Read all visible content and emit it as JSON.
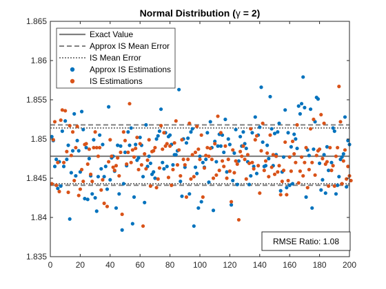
{
  "chart_data": {
    "type": "scatter",
    "title_prefix": "Normal Distribution (",
    "title_symbol": "γ",
    "title_suffix": " = 2)",
    "xlabel": "",
    "ylabel": "",
    "xlim": [
      0,
      200
    ],
    "ylim": [
      1.835,
      1.865
    ],
    "x_ticks": [
      0,
      20,
      40,
      60,
      80,
      100,
      120,
      140,
      160,
      180,
      200
    ],
    "y_ticks": [
      1.835,
      1.84,
      1.845,
      1.85,
      1.855,
      1.86,
      1.865
    ],
    "y_tick_labels": [
      "1.835",
      "1.84",
      "1.845",
      "1.85",
      "1.855",
      "1.86",
      "1.865"
    ],
    "grid": false,
    "legend_location": "top-left",
    "lines": [
      {
        "name": "Exact Value",
        "style": "solid",
        "color": "#7f7f7f",
        "y": [
          1.8478
        ]
      },
      {
        "name": "Approx IS Mean Error",
        "style": "dashed",
        "color": "#7f7f7f",
        "y": [
          1.8441,
          1.8518
        ]
      },
      {
        "name": "IS Mean Error",
        "style": "dotted",
        "color": "#7f7f7f",
        "y": [
          1.8443,
          1.8514
        ]
      }
    ],
    "series": [
      {
        "name": "Approx IS Estimations",
        "color": "#0072BD",
        "y": [
          1.8503,
          1.8498,
          1.8465,
          1.8474,
          1.8437,
          1.8471,
          1.844,
          1.851,
          1.8465,
          1.8523,
          1.8474,
          1.8492,
          1.8398,
          1.8457,
          1.8485,
          1.8532,
          1.8453,
          1.8498,
          1.8485,
          1.8458,
          1.8535,
          1.8512,
          1.8424,
          1.8489,
          1.8423,
          1.8475,
          1.8453,
          1.843,
          1.8499,
          1.8425,
          1.8408,
          1.8452,
          1.8505,
          1.8462,
          1.8493,
          1.8452,
          1.8465,
          1.8436,
          1.8541,
          1.8448,
          1.8476,
          1.8478,
          1.8459,
          1.8412,
          1.8492,
          1.843,
          1.8491,
          1.8384,
          1.8443,
          1.8483,
          1.8466,
          1.8509,
          1.8492,
          1.8514,
          1.8392,
          1.8426,
          1.8493,
          1.8473,
          1.8476,
          1.8502,
          1.8492,
          1.8452,
          1.8419,
          1.8518,
          1.8465,
          1.8478,
          1.8469,
          1.8455,
          1.8458,
          1.845,
          1.85,
          1.8504,
          1.851,
          1.8538,
          1.847,
          1.8462,
          1.8508,
          1.8465,
          1.8503,
          1.8505,
          1.8493,
          1.8467,
          1.848,
          1.848,
          1.8485,
          1.8563,
          1.8446,
          1.8427,
          1.85,
          1.8464,
          1.8495,
          1.8501,
          1.843,
          1.8509,
          1.8513,
          1.8389,
          1.8464,
          1.8456,
          1.8412,
          1.8478,
          1.842,
          1.847,
          1.8464,
          1.8474,
          1.8508,
          1.8445,
          1.8522,
          1.8489,
          1.8409,
          1.8497,
          1.8471,
          1.8491,
          1.8506,
          1.8491,
          1.8505,
          1.8483,
          1.8525,
          1.8458,
          1.85,
          1.8493,
          1.8416,
          1.8447,
          1.8482,
          1.8512,
          1.8442,
          1.8472,
          1.8503,
          1.8491,
          1.8509,
          1.8494,
          1.8488,
          1.8471,
          1.8442,
          1.8453,
          1.8508,
          1.8465,
          1.8528,
          1.8456,
          1.8505,
          1.8515,
          1.8566,
          1.8496,
          1.8465,
          1.8466,
          1.8492,
          1.8475,
          1.8554,
          1.8513,
          1.8466,
          1.8507,
          1.848,
          1.8509,
          1.852,
          1.8434,
          1.8458,
          1.8477,
          1.8537,
          1.8438,
          1.8508,
          1.8441,
          1.849,
          1.8443,
          1.8506,
          1.85,
          1.8488,
          1.8542,
          1.8532,
          1.8545,
          1.8579,
          1.854,
          1.8426,
          1.8486,
          1.8479,
          1.8538,
          1.8412,
          1.8487,
          1.8522,
          1.8553,
          1.8551,
          1.8469,
          1.8435,
          1.8448,
          1.848,
          1.8431,
          1.849,
          1.846,
          1.8378,
          1.847,
          1.8514,
          1.851,
          1.843,
          1.8441,
          1.8452,
          1.8474,
          1.8477,
          1.8481,
          1.8528,
          1.8439,
          1.8498,
          1.8493
        ]
      },
      {
        "name": "IS Estimations",
        "color": "#D95319",
        "y": [
          1.8443,
          1.8499,
          1.8522,
          1.8441,
          1.847,
          1.8433,
          1.8524,
          1.8537,
          1.847,
          1.8536,
          1.8484,
          1.8432,
          1.8517,
          1.8479,
          1.8509,
          1.8447,
          1.8489,
          1.8516,
          1.8428,
          1.8436,
          1.8461,
          1.8446,
          1.8493,
          1.8494,
          1.8468,
          1.8487,
          1.8455,
          1.8446,
          1.8489,
          1.8509,
          1.8489,
          1.8478,
          1.8489,
          1.8435,
          1.8448,
          1.8418,
          1.8568,
          1.8414,
          1.8471,
          1.8499,
          1.8478,
          1.8464,
          1.846,
          1.8466,
          1.8476,
          1.8453,
          1.8483,
          1.8404,
          1.8509,
          1.8498,
          1.8468,
          1.8483,
          1.8545,
          1.847,
          1.8486,
          1.8477,
          1.8488,
          1.8502,
          1.8461,
          1.8494,
          1.8467,
          1.8389,
          1.8481,
          1.8462,
          1.8473,
          1.8499,
          1.844,
          1.8484,
          1.8485,
          1.8489,
          1.8438,
          1.8449,
          1.8463,
          1.8517,
          1.8487,
          1.8508,
          1.8491,
          1.8494,
          1.8451,
          1.8491,
          1.8441,
          1.8461,
          1.8495,
          1.8523,
          1.8467,
          1.8486,
          1.8453,
          1.8499,
          1.8474,
          1.8467,
          1.8426,
          1.8474,
          1.852,
          1.8449,
          1.848,
          1.8452,
          1.8483,
          1.8516,
          1.8487,
          1.8474,
          1.8505,
          1.8426,
          1.8463,
          1.8479,
          1.8489,
          1.8478,
          1.8488,
          1.8474,
          1.845,
          1.8494,
          1.8454,
          1.8529,
          1.846,
          1.8508,
          1.8472,
          1.8465,
          1.8491,
          1.845,
          1.8474,
          1.8459,
          1.842,
          1.8486,
          1.8457,
          1.8472,
          1.8468,
          1.8397,
          1.8484,
          1.8478,
          1.8491,
          1.8474,
          1.8449,
          1.848,
          1.8469,
          1.8513,
          1.847,
          1.8462,
          1.8499,
          1.8504,
          1.8466,
          1.8431,
          1.8485,
          1.852,
          1.846,
          1.8472,
          1.8482,
          1.8452,
          1.8505,
          1.8464,
          1.848,
          1.8455,
          1.8478,
          1.8458,
          1.8466,
          1.8429,
          1.8446,
          1.846,
          1.8496,
          1.8429,
          1.8447,
          1.8477,
          1.8459,
          1.8497,
          1.8481,
          1.847,
          1.8518,
          1.8444,
          1.8459,
          1.8477,
          1.8453,
          1.847,
          1.8489,
          1.8438,
          1.8461,
          1.8513,
          1.847,
          1.8525,
          1.8454,
          1.8479,
          1.8485,
          1.8487,
          1.8531,
          1.8475,
          1.852,
          1.8468,
          1.8471,
          1.844,
          1.8489,
          1.846,
          1.8466,
          1.844,
          1.8478,
          1.8489,
          1.8567,
          1.8522,
          1.8443,
          1.8472,
          1.8486,
          1.8449,
          1.8465,
          1.8453,
          1.8447
        ]
      }
    ],
    "annotation": "RMSE Ratio: 1.08"
  }
}
